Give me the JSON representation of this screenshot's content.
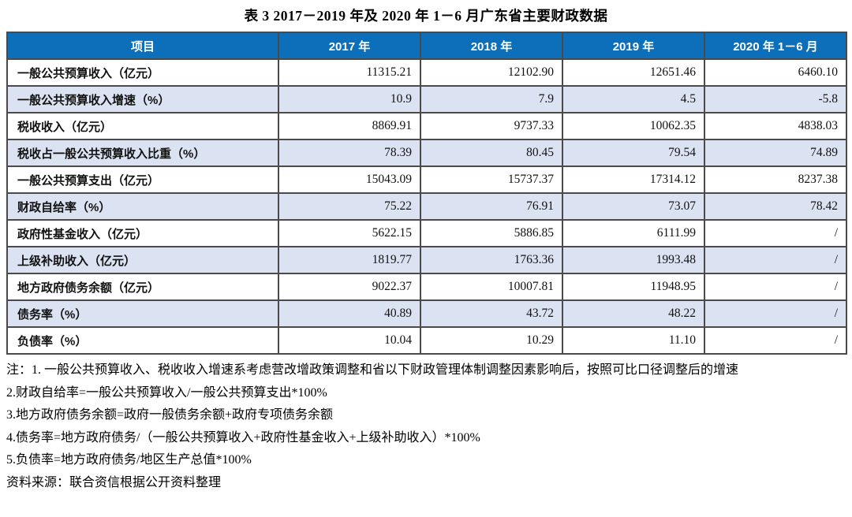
{
  "title": "表 3  2017－2019 年及 2020 年 1－6 月广东省主要财政数据",
  "table": {
    "columns": [
      "项目",
      "2017 年",
      "2018 年",
      "2019 年",
      "2020 年 1－6 月"
    ],
    "rows": [
      {
        "label": "一般公共预算收入（亿元）",
        "values": [
          "11315.21",
          "12102.90",
          "12651.46",
          "6460.10"
        ]
      },
      {
        "label": "一般公共预算收入增速（%）",
        "values": [
          "10.9",
          "7.9",
          "4.5",
          "-5.8"
        ]
      },
      {
        "label": "税收收入（亿元）",
        "values": [
          "8869.91",
          "9737.33",
          "10062.35",
          "4838.03"
        ]
      },
      {
        "label": "税收占一般公共预算收入比重（%）",
        "values": [
          "78.39",
          "80.45",
          "79.54",
          "74.89"
        ]
      },
      {
        "label": "一般公共预算支出（亿元）",
        "values": [
          "15043.09",
          "15737.37",
          "17314.12",
          "8237.38"
        ]
      },
      {
        "label": "财政自给率（%）",
        "values": [
          "75.22",
          "76.91",
          "73.07",
          "78.42"
        ]
      },
      {
        "label": "政府性基金收入（亿元）",
        "values": [
          "5622.15",
          "5886.85",
          "6111.99",
          "/"
        ]
      },
      {
        "label": "上级补助收入（亿元）",
        "values": [
          "1819.77",
          "1763.36",
          "1993.48",
          "/"
        ]
      },
      {
        "label": "地方政府债务余额（亿元）",
        "values": [
          "9022.37",
          "10007.81",
          "11948.95",
          "/"
        ]
      },
      {
        "label": "债务率（%）",
        "values": [
          "40.89",
          "43.72",
          "48.22",
          "/"
        ]
      },
      {
        "label": "负债率（%）",
        "values": [
          "10.04",
          "10.29",
          "11.10",
          "/"
        ]
      }
    ]
  },
  "notes": [
    "注：1. 一般公共预算收入、税收收入增速系考虑营改增政策调整和省以下财政管理体制调整因素影响后，按照可比口径调整后的增速",
    "2.财政自给率=一般公共预算收入/一般公共预算支出*100%",
    "3.地方政府债务余额=政府一般债务余额+政府专项债务余额",
    "4.债务率=地方政府债务/（一般公共预算收入+政府性基金收入+上级补助收入）*100%",
    "5.负债率=地方政府债务/地区生产总值*100%",
    "资料来源：联合资信根据公开资料整理"
  ],
  "colors": {
    "header_bg": "#0d6fba",
    "header_text": "#ffffff",
    "alt_row_bg": "#dbe3f2",
    "border": "#4a4a4a",
    "text": "#000000"
  }
}
